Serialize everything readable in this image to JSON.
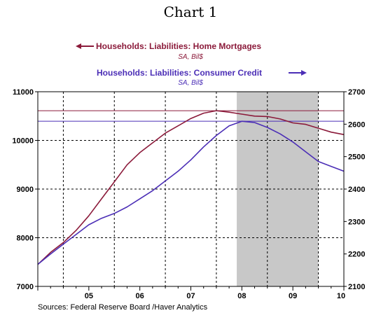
{
  "chart_data": {
    "type": "line",
    "title": "Chart 1",
    "series": [
      {
        "name": "Households: Liabilities: Home Mortgages",
        "units": "SA, Bil$",
        "axis": "left",
        "color": "#8b1a3a",
        "reference_level": 10610,
        "x": [
          2004.0,
          2004.25,
          2004.5,
          2004.75,
          2005.0,
          2005.25,
          2005.5,
          2005.75,
          2006.0,
          2006.25,
          2006.5,
          2006.75,
          2007.0,
          2007.25,
          2007.5,
          2007.75,
          2008.0,
          2008.25,
          2008.5,
          2008.75,
          2009.0,
          2009.25,
          2009.5,
          2009.75,
          2010.0
        ],
        "values": [
          7450,
          7700,
          7900,
          8150,
          8450,
          8800,
          9150,
          9500,
          9750,
          9950,
          10150,
          10300,
          10450,
          10560,
          10610,
          10580,
          10540,
          10500,
          10490,
          10440,
          10360,
          10330,
          10250,
          10170,
          10120
        ]
      },
      {
        "name": "Households: Liabilities: Consumer Credit",
        "units": "SA, Bil$",
        "axis": "right",
        "color": "#4b2eb6",
        "reference_level": 2609,
        "x": [
          2004.0,
          2004.25,
          2004.5,
          2004.75,
          2005.0,
          2005.25,
          2005.5,
          2005.75,
          2006.0,
          2006.25,
          2006.5,
          2006.75,
          2007.0,
          2007.25,
          2007.5,
          2007.75,
          2008.0,
          2008.25,
          2008.5,
          2008.75,
          2009.0,
          2009.25,
          2009.5,
          2009.75,
          2010.0
        ],
        "values": [
          2168,
          2200,
          2230,
          2260,
          2290,
          2310,
          2325,
          2345,
          2370,
          2395,
          2425,
          2455,
          2490,
          2530,
          2565,
          2595,
          2609,
          2605,
          2590,
          2570,
          2545,
          2515,
          2485,
          2470,
          2455
        ]
      }
    ],
    "x_ticks": [
      "05",
      "06",
      "07",
      "08",
      "09",
      "10"
    ],
    "left_axis": {
      "ticks": [
        "7000",
        "8000",
        "9000",
        "10000",
        "11000"
      ],
      "ylim": [
        7000,
        11000
      ]
    },
    "right_axis": {
      "ticks": [
        "2100",
        "2200",
        "2300",
        "2400",
        "2500",
        "2600",
        "2700"
      ],
      "ylim": [
        2100,
        2700
      ]
    },
    "xlim": [
      2004.0,
      2010.0
    ],
    "shaded_region": {
      "from": 2007.9,
      "to": 2009.5,
      "color": "#c8c8c8"
    },
    "grid": "dashed vertical and horizontal gridlines",
    "source": "Sources:  Federal Reserve Board /Haver Analytics"
  }
}
